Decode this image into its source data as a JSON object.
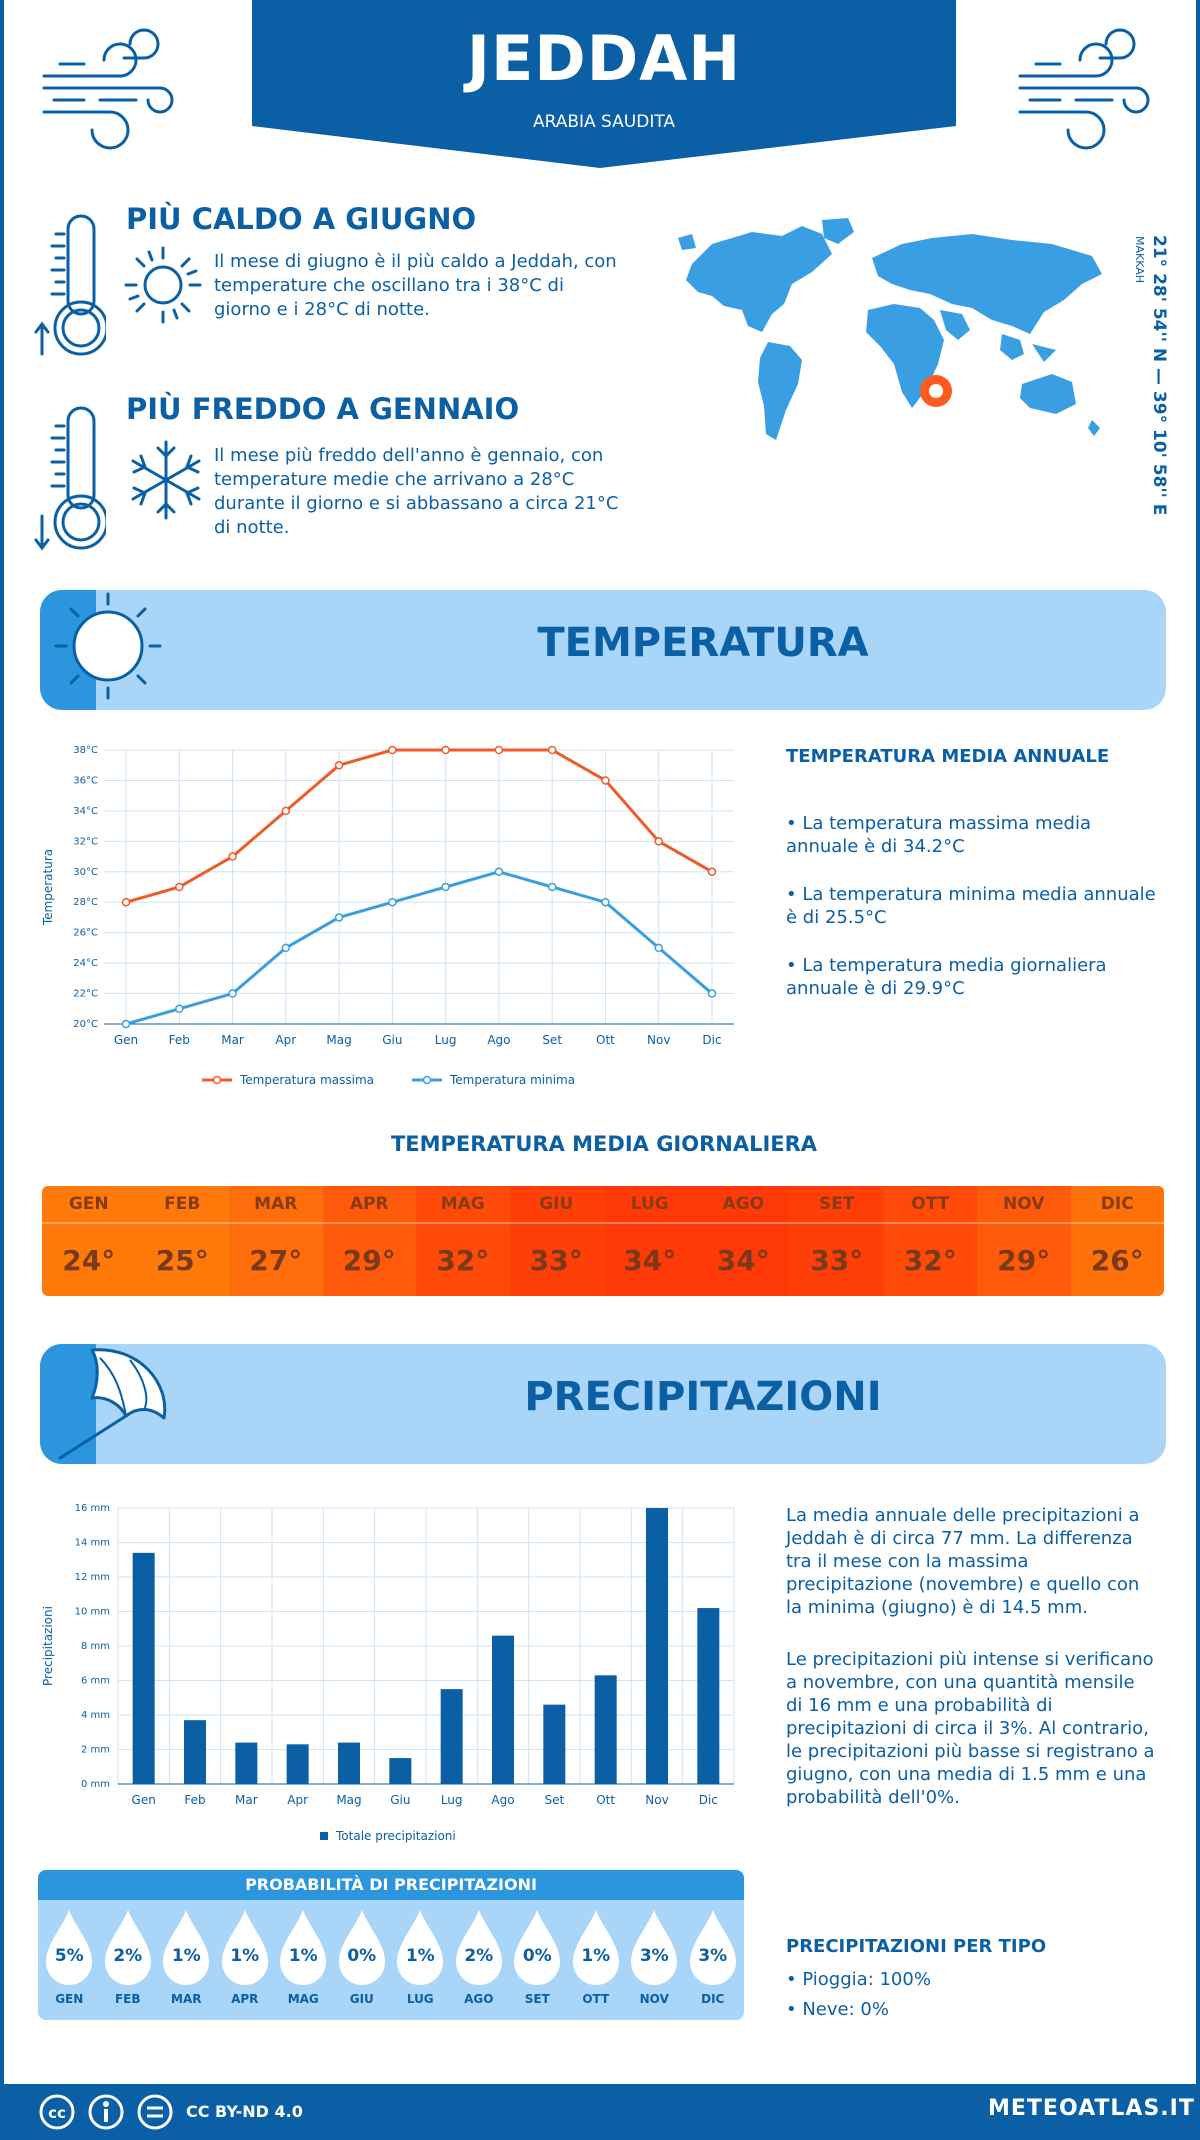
{
  "header": {
    "city": "JEDDAH",
    "country": "ARABIA SAUDITA"
  },
  "hottest": {
    "title": "PIÙ CALDO A GIUGNO",
    "text": "Il mese di giugno è il più caldo a Jeddah, con temperature che oscillano tra i 38°C di giorno e i 28°C di notte."
  },
  "coldest": {
    "title": "PIÙ FREDDO A GENNAIO",
    "text": "Il mese più freddo dell'anno è gennaio, con temperature medie che arrivano a 28°C durante il giorno e si abbassano a circa 21°C di notte."
  },
  "location": {
    "coords": "21° 28' 54'' N — 39° 10' 58'' E",
    "region": "MAKKAH"
  },
  "temperature_section": {
    "title": "TEMPERATURA"
  },
  "annual_temp": {
    "title": "TEMPERATURA MEDIA ANNUALE",
    "max": "• La temperatura massima media annuale è di 34.2°C",
    "min": "• La temperatura minima media annuale è di 25.5°C",
    "mean": "• La temperatura media giornaliera annuale è di 29.9°C"
  },
  "daily": {
    "title": "TEMPERATURA MEDIA GIORNALIERA",
    "months": [
      "GEN",
      "FEB",
      "MAR",
      "APR",
      "MAG",
      "GIU",
      "LUG",
      "AGO",
      "SET",
      "OTT",
      "NOV",
      "DIC"
    ],
    "values": [
      "24°",
      "25°",
      "27°",
      "29°",
      "32°",
      "33°",
      "34°",
      "34°",
      "33°",
      "32°",
      "29°",
      "26°"
    ],
    "colors": [
      "#ff7a0a",
      "#ff7a0a",
      "#ff6e0a",
      "#ff5a0a",
      "#ff4a08",
      "#ff3e08",
      "#ff3a08",
      "#ff3a08",
      "#ff3e08",
      "#ff4a08",
      "#ff5a0a",
      "#ff720a"
    ]
  },
  "precip_section": {
    "title": "PRECIPITAZIONI"
  },
  "precip_text": {
    "p1": "La media annuale delle precipitazioni a Jeddah è di circa 77 mm. La differenza tra il mese con la massima precipitazione (novembre) e quello con la minima (giugno) è di 14.5 mm.",
    "p2": "Le precipitazioni più intense si verificano a novembre, con una quantità mensile di 16 mm e una probabilità di precipitazioni di circa il 3%. Al contrario, le precipitazioni più basse si registrano a giugno, con una media di 1.5 mm e una probabilità dell'0%."
  },
  "probability": {
    "title": "PROBABILITÀ DI PRECIPITAZIONI",
    "months": [
      "GEN",
      "FEB",
      "MAR",
      "APR",
      "MAG",
      "GIU",
      "LUG",
      "AGO",
      "SET",
      "OTT",
      "NOV",
      "DIC"
    ],
    "values": [
      "5%",
      "2%",
      "1%",
      "1%",
      "1%",
      "0%",
      "1%",
      "2%",
      "0%",
      "1%",
      "3%",
      "3%"
    ]
  },
  "precip_type": {
    "title": "PRECIPITAZIONI PER TIPO",
    "rain": "• Pioggia: 100%",
    "snow": "• Neve: 0%"
  },
  "footer": {
    "license": "CC BY-ND 4.0",
    "site": "METEOATLAS.IT"
  },
  "colors": {
    "brand": "#0b5fa5",
    "light": "#a9d6f8",
    "accent": "#2b95dd",
    "max_line": "#f05a28",
    "min_line": "#3b9ee0",
    "bar": "#0b5fa5",
    "location_dot": "#ff5a1f"
  },
  "chart_data": [
    {
      "type": "line",
      "categories": [
        "Gen",
        "Feb",
        "Mar",
        "Apr",
        "Mag",
        "Giu",
        "Lug",
        "Ago",
        "Set",
        "Ott",
        "Nov",
        "Dic"
      ],
      "series": [
        {
          "name": "Temperatura massima",
          "values": [
            28,
            29,
            31,
            34,
            37,
            38,
            38,
            38,
            38,
            36,
            32,
            30
          ]
        },
        {
          "name": "Temperatura minima",
          "values": [
            20,
            21,
            22,
            25,
            27,
            28,
            29,
            30,
            29,
            28,
            25,
            22
          ]
        }
      ],
      "ylabel": "Temperatura",
      "ylim": [
        20,
        38
      ],
      "yticks": [
        "20°C",
        "22°C",
        "24°C",
        "26°C",
        "28°C",
        "30°C",
        "32°C",
        "34°C",
        "36°C",
        "38°C"
      ],
      "grid": true,
      "legend": "bottom"
    },
    {
      "type": "bar",
      "categories": [
        "Gen",
        "Feb",
        "Mar",
        "Apr",
        "Mag",
        "Giu",
        "Lug",
        "Ago",
        "Set",
        "Ott",
        "Nov",
        "Dic"
      ],
      "series": [
        {
          "name": "Totale precipitazioni",
          "values": [
            13.4,
            3.7,
            2.4,
            2.3,
            2.4,
            1.5,
            5.5,
            8.6,
            4.6,
            6.3,
            16,
            10.2
          ]
        }
      ],
      "ylabel": "Precipitazioni",
      "ylim": [
        0,
        16
      ],
      "yticks": [
        "0 mm",
        "2 mm",
        "4 mm",
        "6 mm",
        "8 mm",
        "10 mm",
        "12 mm",
        "14 mm",
        "16 mm"
      ],
      "grid": true,
      "legend": "bottom"
    }
  ]
}
